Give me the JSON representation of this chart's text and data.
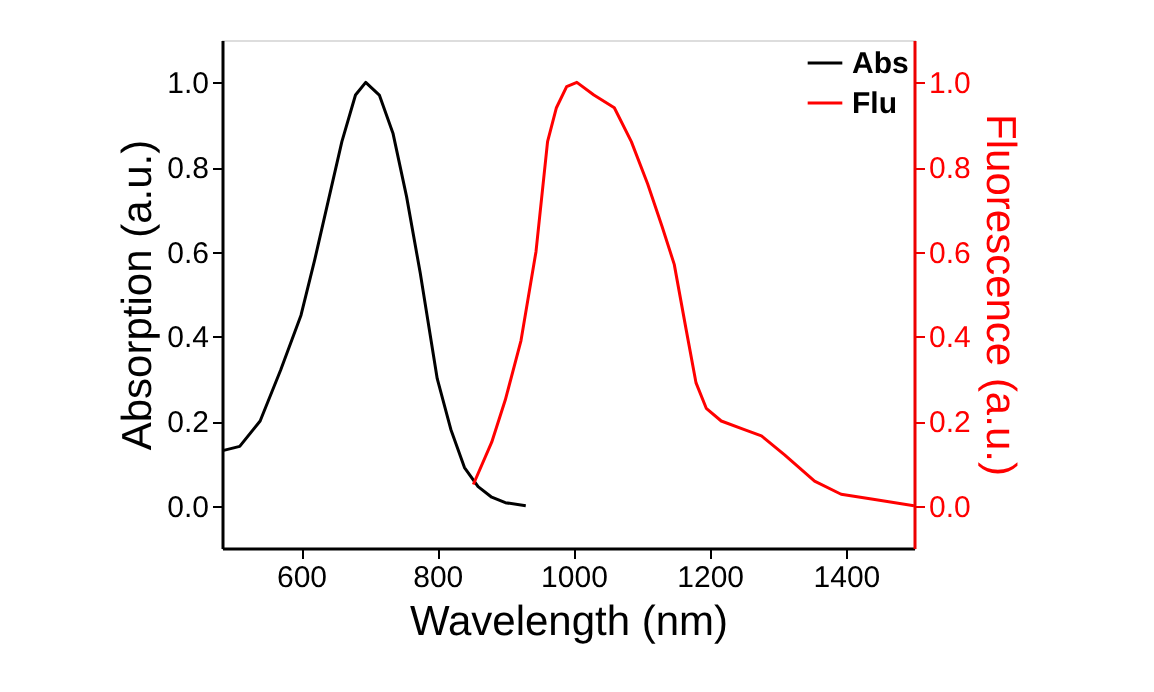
{
  "chart_data": {
    "type": "line",
    "xlabel": "Wavelength (nm)",
    "ylabel": "Absorption (a.u.)",
    "y2label": "Fluorescence (a.u.)",
    "xlim": [
      484,
      1500
    ],
    "xticks": [
      600,
      800,
      1000,
      1200,
      1400
    ],
    "ylim": [
      -0.1,
      1.1
    ],
    "yticks": [
      {
        "value": 0,
        "label": "0.0"
      },
      0.2,
      0.4,
      0.6,
      0.8,
      {
        "value": 1,
        "label": "1.0"
      }
    ],
    "y2lim": [
      -0.1,
      1.1
    ],
    "y2ticks": [
      {
        "value": 0,
        "label": "0.0"
      },
      0.2,
      0.4,
      0.6,
      0.8,
      {
        "value": 1,
        "label": "1.0"
      }
    ],
    "legend": "top right",
    "grid": false,
    "line_style": "solid",
    "marker": "none",
    "series": [
      {
        "name": "Abs",
        "color": "#000000",
        "x": [
          485,
          510,
          540,
          570,
          600,
          620,
          640,
          660,
          680,
          695,
          715,
          735,
          755,
          775,
          800,
          820,
          840,
          860,
          880,
          900,
          930
        ],
        "values": [
          0.13,
          0.14,
          0.2,
          0.32,
          0.45,
          0.58,
          0.72,
          0.86,
          0.97,
          1.0,
          0.97,
          0.88,
          0.73,
          0.55,
          0.3,
          0.18,
          0.09,
          0.045,
          0.02,
          0.007,
          0.0
        ]
      },
      {
        "name": "Flu",
        "color": "#ff0000",
        "axis": "y2",
        "x": [
          853,
          880,
          900,
          923,
          945,
          962,
          975,
          990,
          1005,
          1030,
          1060,
          1085,
          1109,
          1130,
          1148,
          1165,
          1180,
          1195,
          1217,
          1250,
          1276,
          1310,
          1354,
          1393,
          1440,
          1500
        ],
        "values": [
          0.05,
          0.15,
          0.25,
          0.39,
          0.6,
          0.86,
          0.94,
          0.99,
          1.0,
          0.97,
          0.94,
          0.86,
          0.76,
          0.66,
          0.57,
          0.42,
          0.29,
          0.23,
          0.2,
          0.18,
          0.165,
          0.12,
          0.058,
          0.027,
          0.015,
          0.0
        ]
      }
    ]
  }
}
